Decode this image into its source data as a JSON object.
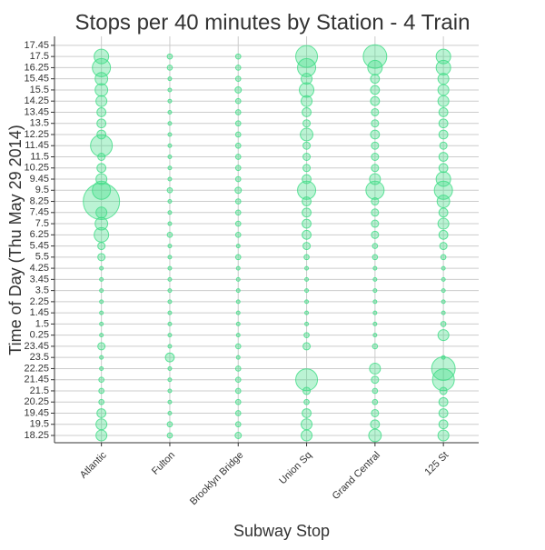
{
  "chart_data": {
    "type": "bubble",
    "title": "Stops per 40 minutes by Station - 4 Train",
    "x_label": "Subway Stop",
    "y_label": "Time of Day (Thu May 29 2014)",
    "categories": [
      "Atlantic",
      "Fulton",
      "Brooklyn Bridge",
      "Union Sq",
      "Grand Central",
      "125 St"
    ],
    "y_categories": [
      "18.25",
      "19.5",
      "19.45",
      "20.25",
      "21.5",
      "21.45",
      "22.25",
      "23.5",
      "23.45",
      "0.25",
      "1.5",
      "1.45",
      "2.25",
      "3.5",
      "3.45",
      "4.25",
      "5.5",
      "5.45",
      "6.25",
      "7.5",
      "7.45",
      "8.25",
      "9.5",
      "9.45",
      "10.25",
      "11.5",
      "11.45",
      "12.25",
      "13.5",
      "13.45",
      "14.25",
      "15.5",
      "15.45",
      "16.25",
      "17.5",
      "17.45"
    ],
    "sizes": [
      [
        9,
        9,
        6,
        2,
        2,
        2,
        1,
        1,
        4,
        1,
        1,
        1,
        1,
        1,
        1,
        1,
        4,
        4,
        16,
        12,
        9,
        100,
        25,
        9,
        6,
        4,
        36,
        6,
        6,
        6,
        9,
        12,
        12,
        25,
        16,
        0
      ],
      [
        2,
        2,
        1,
        1,
        1,
        1,
        1,
        6,
        1,
        1,
        1,
        1,
        1,
        1,
        1,
        1,
        1,
        1,
        2,
        1,
        1,
        1,
        2,
        1,
        1,
        1,
        1,
        1,
        1,
        1,
        1,
        1,
        1,
        2,
        2,
        0
      ],
      [
        3,
        2,
        2,
        2,
        2,
        2,
        2,
        1,
        2,
        1,
        1,
        1,
        1,
        1,
        1,
        1,
        2,
        1,
        2,
        2,
        2,
        2,
        3,
        2,
        2,
        2,
        2,
        2,
        2,
        2,
        2,
        3,
        2,
        2,
        2,
        0
      ],
      [
        9,
        9,
        6,
        2,
        4,
        36,
        0,
        0,
        4,
        2,
        1,
        1,
        1,
        1,
        1,
        1,
        2,
        4,
        6,
        6,
        6,
        6,
        25,
        6,
        4,
        4,
        4,
        12,
        4,
        6,
        9,
        16,
        9,
        25,
        36,
        0
      ],
      [
        12,
        6,
        4,
        2,
        2,
        4,
        9,
        0,
        2,
        1,
        1,
        1,
        1,
        1,
        1,
        1,
        2,
        2,
        4,
        4,
        4,
        4,
        25,
        9,
        4,
        4,
        4,
        6,
        4,
        4,
        6,
        6,
        6,
        16,
        42,
        0
      ],
      [
        9,
        6,
        6,
        6,
        4,
        36,
        42,
        1,
        0,
        9,
        2,
        1,
        1,
        1,
        1,
        1,
        2,
        4,
        6,
        9,
        6,
        12,
        25,
        16,
        6,
        6,
        4,
        6,
        6,
        6,
        9,
        9,
        9,
        16,
        16,
        0
      ]
    ],
    "color": "#3ddc84",
    "grid": true
  }
}
